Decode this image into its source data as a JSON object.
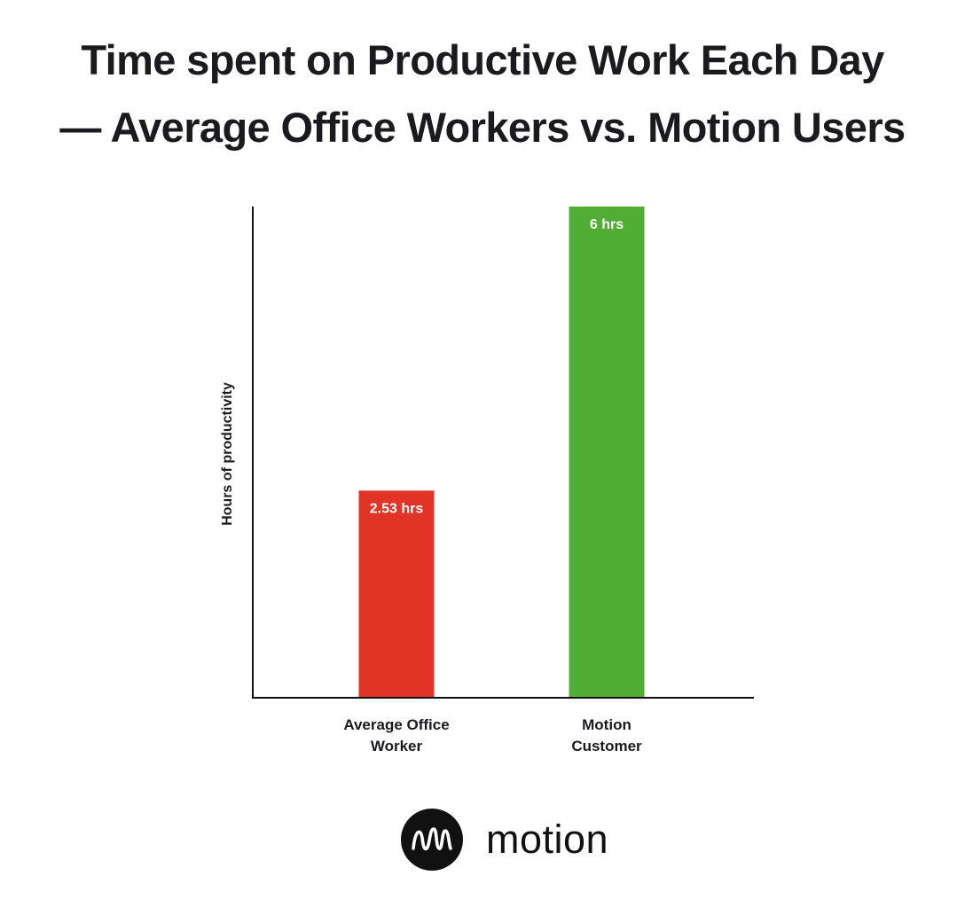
{
  "title_lines": [
    "Time spent on Productive Work Each Day",
    "— Average Office Workers vs. Motion Users"
  ],
  "chart_data": {
    "type": "bar",
    "title": "Time spent on Productive Work Each Day — Average Office Workers vs. Motion Users",
    "categories": [
      [
        "Average Office",
        "Worker"
      ],
      [
        "Motion",
        "Customer"
      ]
    ],
    "values": [
      2.53,
      6
    ],
    "data_labels": [
      "2.53 hrs",
      "6 hrs"
    ],
    "colors": [
      "#e13426",
      "#52ad34"
    ],
    "xlabel": "",
    "ylabel": "Hours of productivity",
    "ylim": [
      0,
      6
    ],
    "grid": false,
    "legend": "none"
  },
  "logo": {
    "text": "motion",
    "icon": "motion-logo-icon"
  }
}
